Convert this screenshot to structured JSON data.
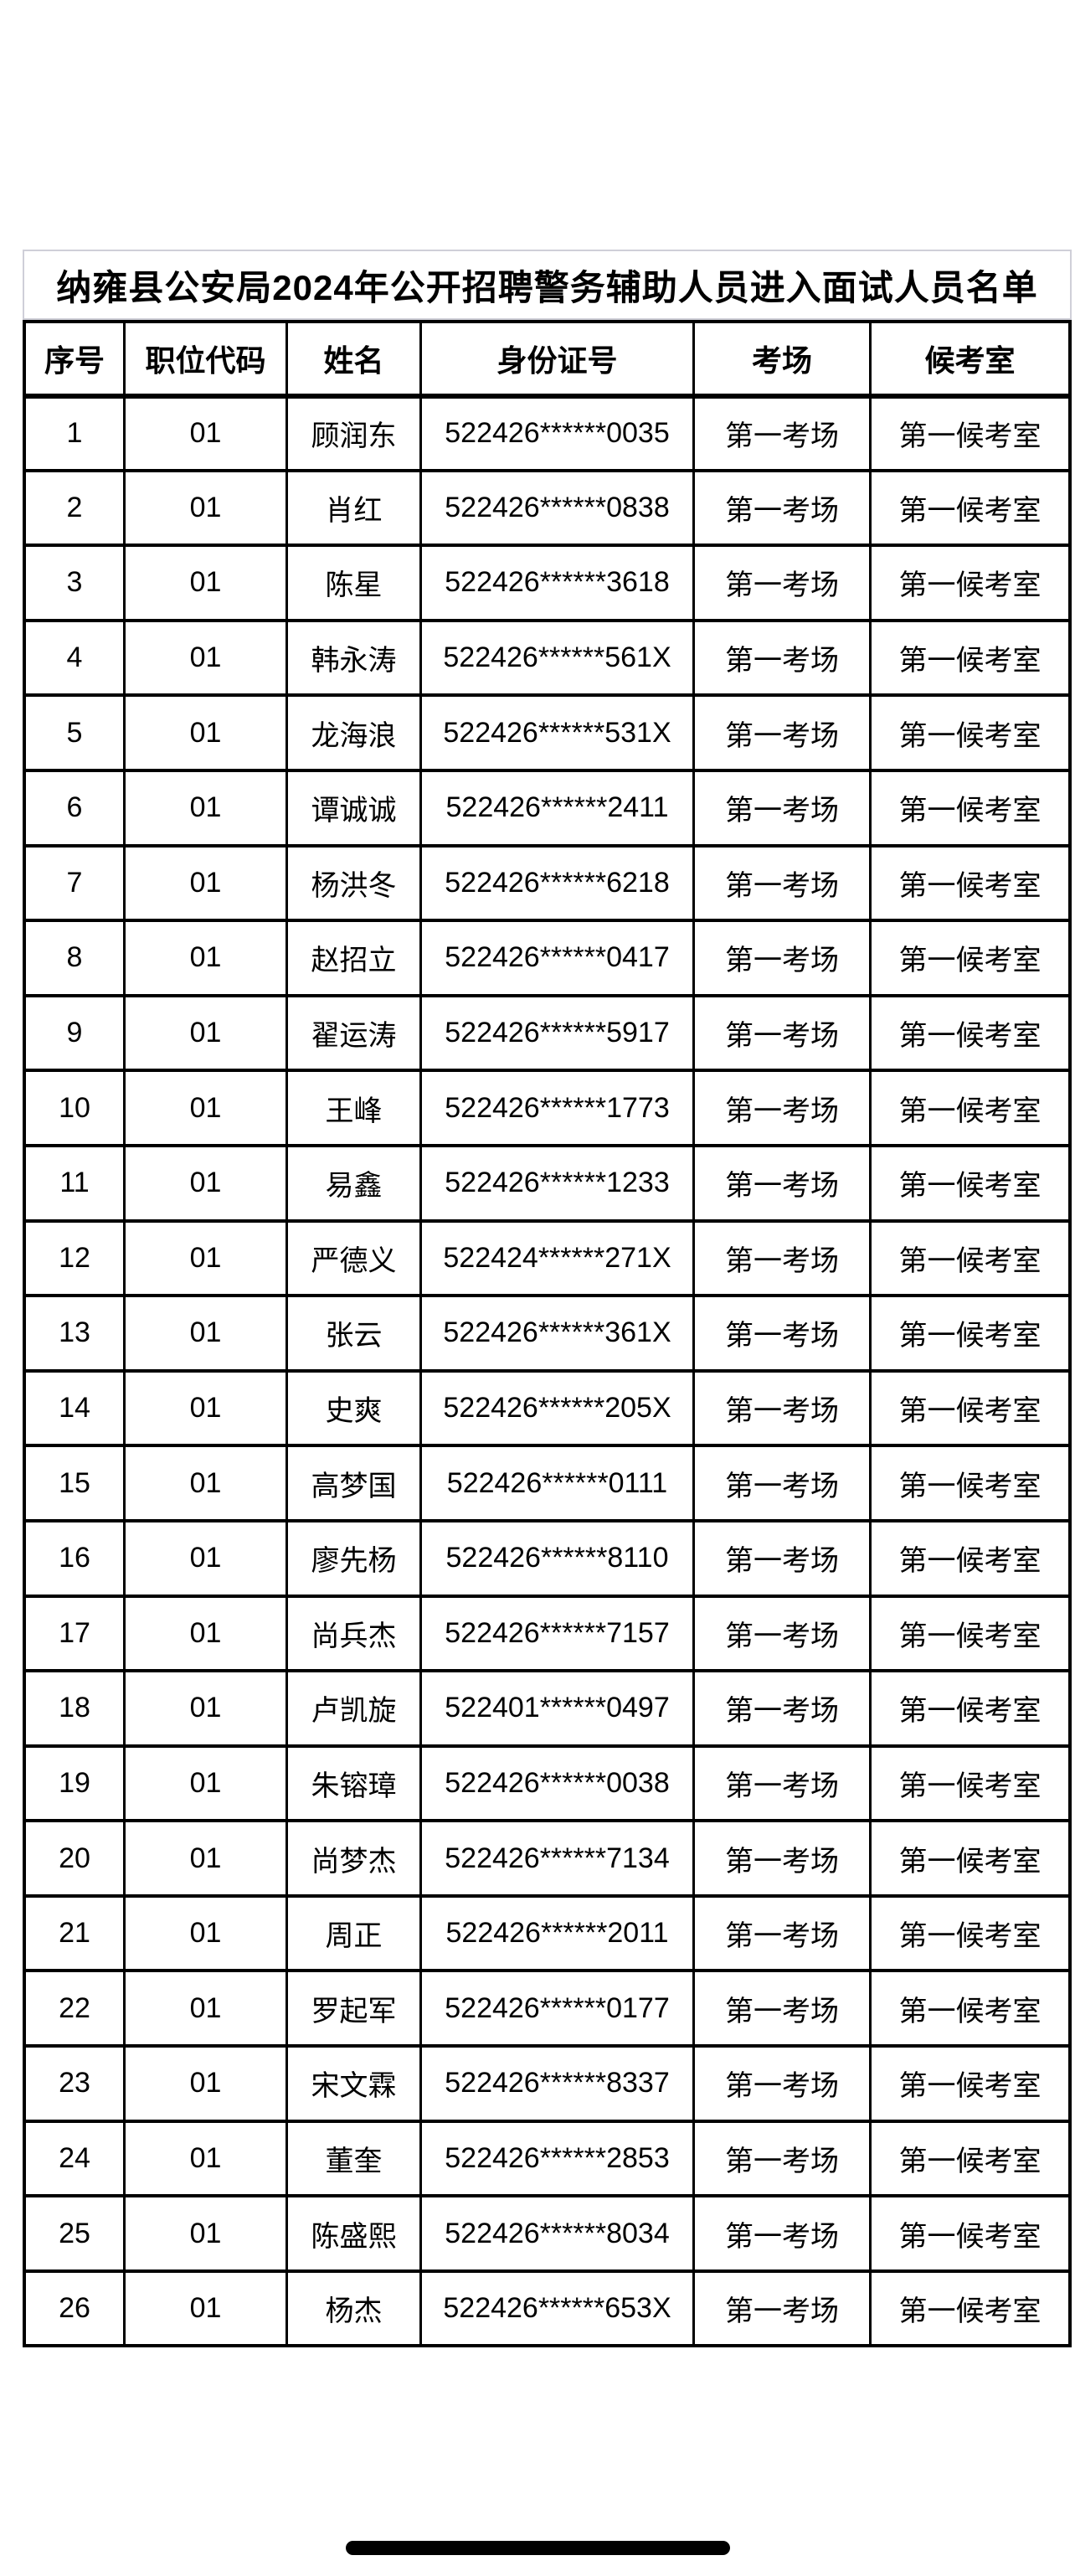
{
  "page": {
    "title": "纳雍县公安局2024年公开招聘警务辅助人员进入面试人员名单"
  },
  "colors": {
    "background": "#ffffff",
    "table_border": "#000000",
    "title_box_border": "#cfcfd8",
    "redaction_bar": "#000000",
    "text": "#000000"
  },
  "table": {
    "headers": [
      "序号",
      "职位代码",
      "姓名",
      "身份证号",
      "考场",
      "候考室"
    ],
    "rows": [
      {
        "seq": "1",
        "code": "01",
        "name": "顾润东",
        "id": "522426******0035",
        "room": "第一考场",
        "waiting": "第一候考室"
      },
      {
        "seq": "2",
        "code": "01",
        "name": "肖红",
        "id": "522426******0838",
        "room": "第一考场",
        "waiting": "第一候考室"
      },
      {
        "seq": "3",
        "code": "01",
        "name": "陈星",
        "id": "522426******3618",
        "room": "第一考场",
        "waiting": "第一候考室"
      },
      {
        "seq": "4",
        "code": "01",
        "name": "韩永涛",
        "id": "522426******561X",
        "room": "第一考场",
        "waiting": "第一候考室"
      },
      {
        "seq": "5",
        "code": "01",
        "name": "龙海浪",
        "id": "522426******531X",
        "room": "第一考场",
        "waiting": "第一候考室"
      },
      {
        "seq": "6",
        "code": "01",
        "name": "谭诚诚",
        "id": "522426******2411",
        "room": "第一考场",
        "waiting": "第一候考室"
      },
      {
        "seq": "7",
        "code": "01",
        "name": "杨洪冬",
        "id": "522426******6218",
        "room": "第一考场",
        "waiting": "第一候考室"
      },
      {
        "seq": "8",
        "code": "01",
        "name": "赵招立",
        "id": "522426******0417",
        "room": "第一考场",
        "waiting": "第一候考室"
      },
      {
        "seq": "9",
        "code": "01",
        "name": "翟运涛",
        "id": "522426******5917",
        "room": "第一考场",
        "waiting": "第一候考室"
      },
      {
        "seq": "10",
        "code": "01",
        "name": "王峰",
        "id": "522426******1773",
        "room": "第一考场",
        "waiting": "第一候考室"
      },
      {
        "seq": "11",
        "code": "01",
        "name": "易鑫",
        "id": "522426******1233",
        "room": "第一考场",
        "waiting": "第一候考室"
      },
      {
        "seq": "12",
        "code": "01",
        "name": "严德义",
        "id": "522424******271X",
        "room": "第一考场",
        "waiting": "第一候考室"
      },
      {
        "seq": "13",
        "code": "01",
        "name": "张云",
        "id": "522426******361X",
        "room": "第一考场",
        "waiting": "第一候考室"
      },
      {
        "seq": "14",
        "code": "01",
        "name": "史爽",
        "id": "522426******205X",
        "room": "第一考场",
        "waiting": "第一候考室"
      },
      {
        "seq": "15",
        "code": "01",
        "name": "高梦国",
        "id": "522426******0111",
        "room": "第一考场",
        "waiting": "第一候考室"
      },
      {
        "seq": "16",
        "code": "01",
        "name": "廖先杨",
        "id": "522426******8110",
        "room": "第一考场",
        "waiting": "第一候考室"
      },
      {
        "seq": "17",
        "code": "01",
        "name": "尚兵杰",
        "id": "522426******7157",
        "room": "第一考场",
        "waiting": "第一候考室"
      },
      {
        "seq": "18",
        "code": "01",
        "name": "卢凯旋",
        "id": "522401******0497",
        "room": "第一考场",
        "waiting": "第一候考室"
      },
      {
        "seq": "19",
        "code": "01",
        "name": "朱镕璋",
        "id": "522426******0038",
        "room": "第一考场",
        "waiting": "第一候考室"
      },
      {
        "seq": "20",
        "code": "01",
        "name": "尚梦杰",
        "id": "522426******7134",
        "room": "第一考场",
        "waiting": "第一候考室"
      },
      {
        "seq": "21",
        "code": "01",
        "name": "周正",
        "id": "522426******2011",
        "room": "第一考场",
        "waiting": "第一候考室"
      },
      {
        "seq": "22",
        "code": "01",
        "name": "罗起军",
        "id": "522426******0177",
        "room": "第一考场",
        "waiting": "第一候考室"
      },
      {
        "seq": "23",
        "code": "01",
        "name": "宋文霖",
        "id": "522426******8337",
        "room": "第一考场",
        "waiting": "第一候考室"
      },
      {
        "seq": "24",
        "code": "01",
        "name": "董奎",
        "id": "522426******2853",
        "room": "第一考场",
        "waiting": "第一候考室"
      },
      {
        "seq": "25",
        "code": "01",
        "name": "陈盛熙",
        "id": "522426******8034",
        "room": "第一考场",
        "waiting": "第一候考室"
      },
      {
        "seq": "26",
        "code": "01",
        "name": "杨杰",
        "id": "522426******653X",
        "room": "第一考场",
        "waiting": "第一候考室"
      }
    ]
  },
  "redaction": {
    "description": "black capsule bar covering part of row 26 name and id number"
  }
}
